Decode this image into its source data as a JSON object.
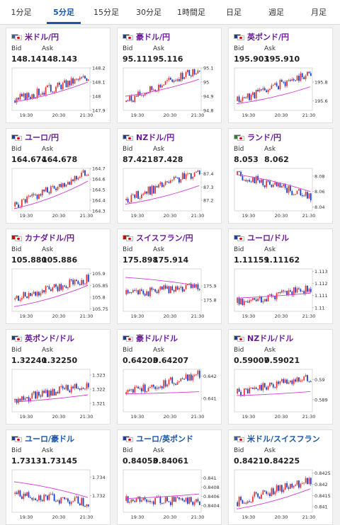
{
  "tabs": [
    {
      "label": "1分足",
      "active": false
    },
    {
      "label": "5分足",
      "active": true
    },
    {
      "label": "15分足",
      "active": false
    },
    {
      "label": "30分足",
      "active": false
    },
    {
      "label": "1時間足",
      "active": false
    },
    {
      "label": "日足",
      "active": false
    },
    {
      "label": "週足",
      "active": false
    },
    {
      "label": "月足",
      "active": false
    }
  ],
  "labels": {
    "bid": "Bid",
    "ask": "Ask"
  },
  "colors": {
    "up": "#e53935",
    "down": "#1e40c8",
    "ma": "#d23cd2",
    "pair_purple": "#6a1b9a",
    "pair_blue": "#1a55a8",
    "tab_active": "#1a55a8"
  },
  "time_ticks": [
    "19:30",
    "20:30",
    "21:30"
  ],
  "cards": [
    {
      "name": "米ドル/円",
      "color": "purple",
      "flag1": "#3c5aa8",
      "bid": "148.141",
      "ask": "148.143",
      "chart_data": {
        "type": "candlestick",
        "y_ticks": [
          "148.2",
          "148.1",
          "148",
          "147.9"
        ],
        "ylim": [
          147.9,
          148.2
        ],
        "start": 147.97,
        "end": 148.14,
        "ma_start": 147.96,
        "ma_end": 148.1,
        "seed": 3
      }
    },
    {
      "name": "豪ドル/円",
      "color": "purple",
      "flag1": "#1f3a8a",
      "bid": "95.111",
      "ask": "95.116",
      "chart_data": {
        "type": "candlestick",
        "y_ticks": [
          "95.1",
          "95",
          "94.9",
          "94.8"
        ],
        "ylim": [
          94.8,
          95.1
        ],
        "start": 94.86,
        "end": 95.1,
        "ma_start": 94.9,
        "ma_end": 95.02,
        "seed": 7
      }
    },
    {
      "name": "英ポンド/円",
      "color": "purple",
      "flag1": "#1f3a8a",
      "bid": "195.903",
      "ask": "195.910",
      "chart_data": {
        "type": "candlestick",
        "y_ticks": [
          "195.8",
          "195.6"
        ],
        "ylim": [
          195.5,
          195.95
        ],
        "start": 195.6,
        "end": 195.9,
        "ma_start": 195.57,
        "ma_end": 195.75,
        "seed": 11
      }
    },
    {
      "name": "ユーロ/円",
      "color": "purple",
      "flag1": "#1f3aa8",
      "bid": "164.674",
      "ask": "164.678",
      "chart_data": {
        "type": "candlestick",
        "y_ticks": [
          "164.7",
          "164.6",
          "164.5",
          "164.4",
          "164.3"
        ],
        "ylim": [
          164.3,
          164.7
        ],
        "start": 164.34,
        "end": 164.67,
        "ma_start": 164.32,
        "ma_end": 164.58,
        "seed": 5
      }
    },
    {
      "name": "NZドル/円",
      "color": "purple",
      "flag1": "#1f3a8a",
      "bid": "87.421",
      "ask": "87.428",
      "chart_data": {
        "type": "candlestick",
        "y_ticks": [
          "87.4",
          "87.3",
          "87.2"
        ],
        "ylim": [
          87.12,
          87.44
        ],
        "start": 87.2,
        "end": 87.42,
        "ma_start": 87.17,
        "ma_end": 87.31,
        "seed": 13
      }
    },
    {
      "name": "ランド/円",
      "color": "purple",
      "flag1": "#2e7d32",
      "bid": "8.053",
      "ask": "8.062",
      "chart_data": {
        "type": "candlestick",
        "y_ticks": [
          "8.08",
          "8.06",
          "8.04"
        ],
        "ylim": [
          8.035,
          8.09
        ],
        "start": 8.082,
        "end": 8.053,
        "ma_start": 8.082,
        "ma_end": 8.06,
        "seed": 17
      }
    },
    {
      "name": "カナダドル/円",
      "color": "purple",
      "flag1": "#d40000",
      "bid": "105.880",
      "ask": "105.886",
      "chart_data": {
        "type": "candlestick",
        "y_ticks": [
          "105.9",
          "105.85",
          "105.8",
          "105.75"
        ],
        "ylim": [
          105.74,
          105.92
        ],
        "start": 105.79,
        "end": 105.88,
        "ma_start": 105.76,
        "ma_end": 105.85,
        "seed": 19
      }
    },
    {
      "name": "スイスフラン/円",
      "color": "purple",
      "flag1": "#d40000",
      "bid": "175.898",
      "ask": "175.914",
      "chart_data": {
        "type": "candlestick",
        "y_ticks": [
          "175.9",
          "175.8"
        ],
        "ylim": [
          175.72,
          176.02
        ],
        "start": 175.84,
        "end": 175.9,
        "ma_start": 175.96,
        "ma_end": 175.9,
        "seed": 23
      }
    },
    {
      "name": "ユーロ/ドル",
      "color": "purple",
      "flag1": "#1f3aa8",
      "bid": "1.11159",
      "ask": "1.11162",
      "chart_data": {
        "type": "candlestick",
        "y_ticks": [
          "1.113",
          "1.112",
          "1.111",
          "1.11"
        ],
        "ylim": [
          1.1097,
          1.1132
        ],
        "start": 1.1104,
        "end": 1.1116,
        "ma_start": 1.1108,
        "ma_end": 1.1112,
        "seed": 29
      }
    },
    {
      "name": "英ポンド/ドル",
      "color": "purple",
      "flag1": "#1f3a8a",
      "bid": "1.32240",
      "ask": "1.32250",
      "chart_data": {
        "type": "candlestick",
        "y_ticks": [
          "1.323",
          "1.322",
          "1.321"
        ],
        "ylim": [
          1.3204,
          1.3234
        ],
        "start": 1.3212,
        "end": 1.3224,
        "ma_start": 1.3211,
        "ma_end": 1.3216,
        "seed": 31
      }
    },
    {
      "name": "豪ドル/ドル",
      "color": "purple",
      "flag1": "#1f3a8a",
      "bid": "0.64203",
      "ask": "0.64207",
      "chart_data": {
        "type": "candlestick",
        "y_ticks": [
          "0.642",
          "0.641"
        ],
        "ylim": [
          0.6404,
          0.6423
        ],
        "start": 0.6412,
        "end": 0.6421,
        "ma_start": 0.6412,
        "ma_end": 0.6413,
        "seed": 37
      }
    },
    {
      "name": "NZドル/ドル",
      "color": "purple",
      "flag1": "#1f3a8a",
      "bid": "0.59007",
      "ask": "0.59021",
      "chart_data": {
        "type": "candlestick",
        "y_ticks": [
          "0.59",
          "0.589"
        ],
        "ylim": [
          0.5884,
          0.5905
        ],
        "start": 0.5893,
        "end": 0.5901,
        "ma_start": 0.5892,
        "ma_end": 0.5894,
        "seed": 41
      }
    },
    {
      "name": "ユーロ/豪ドル",
      "color": "blue",
      "flag1": "#1f3aa8",
      "bid": "1.73131",
      "ask": "1.73145",
      "chart_data": {
        "type": "candlestick",
        "y_ticks": [
          "1.734",
          "1.732"
        ],
        "ylim": [
          1.7302,
          1.7348
        ],
        "start": 1.7322,
        "end": 1.7313,
        "ma_start": 1.7335,
        "ma_end": 1.7318,
        "seed": 43
      }
    },
    {
      "name": "ユーロ/英ポンド",
      "color": "blue",
      "flag1": "#1f3aa8",
      "bid": "0.84053",
      "ask": "0.84061",
      "chart_data": {
        "type": "candlestick",
        "y_ticks": [
          "0.841",
          "0.8408",
          "0.8406",
          "0.8404"
        ],
        "ylim": [
          0.84025,
          0.84118
        ],
        "start": 0.8405,
        "end": 0.8405,
        "ma_start": 0.84055,
        "ma_end": 0.84065,
        "seed": 47
      }
    },
    {
      "name": "米ドル/スイスフラン",
      "color": "blue",
      "flag1": "#3c5aa8",
      "bid": "0.84210",
      "ask": "0.84225",
      "chart_data": {
        "type": "candlestick",
        "y_ticks": [
          "0.8425",
          "0.842",
          "0.8415",
          "0.841"
        ],
        "ylim": [
          0.84075,
          0.84265
        ],
        "start": 0.8412,
        "end": 0.8422,
        "ma_start": 0.8409,
        "ma_end": 0.8418,
        "seed": 53
      }
    }
  ]
}
